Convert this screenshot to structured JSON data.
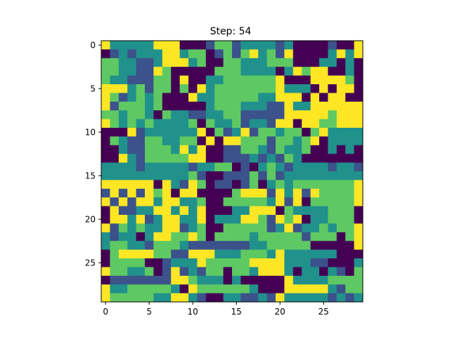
{
  "title": "Step: 54",
  "chart_data": {
    "type": "heatmap",
    "title": "Step: 54",
    "rows": 30,
    "cols": 30,
    "xticks": [
      0,
      5,
      10,
      15,
      20,
      25
    ],
    "yticks": [
      0,
      5,
      10,
      15,
      20,
      25
    ],
    "xlim": [
      -0.5,
      29.5
    ],
    "ylim": [
      29.5,
      -0.5
    ],
    "colormap": {
      "0": "#440154",
      "1": "#3b528b",
      "2": "#21918c",
      "3": "#5ec962",
      "4": "#fde725"
    },
    "grid": [
      "422222444000133122221200001004",
      "012122244233013134231400002424",
      "332211244423003322233300022020",
      "332211430000033322220243440020",
      "322111330400223333334000444430",
      "444231330304233333334222040440",
      "431232300042233333224440404400",
      "413332300000233322211422444444",
      "332332032211223311111444443444",
      "432323222230322312214404433444",
      "000412222224031241332330342222",
      "032113322330404433313323402222",
      "002113332424001133213223002020",
      "004213333344001112121320000000",
      "222212222212233010232122221221",
      "222222222231001113131222222222",
      "444444042143011013023233333334",
      "141414340440000344414241433334",
      "414144244223003333324140333334",
      "041122442424000224440322223330",
      "044241244224022244314340223330",
      "413232244123003333312412232334",
      "212202443343033332333331333034",
      "233221333211111112233333000004",
      "034444331144422233324222222000",
      "033330012224333334444222110002",
      "433223014121330332444202202103",
      "011111114432220200000422223333",
      "422333332043333332000444442133",
      "433333224421002211214222221212"
    ]
  }
}
